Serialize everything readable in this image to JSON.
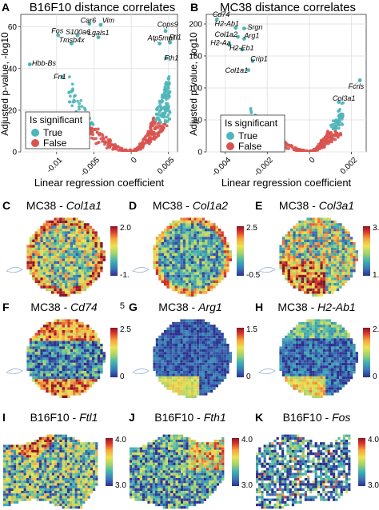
{
  "figure": {
    "volcano_panels": [
      {
        "letter": "A",
        "title": "B16F10 distance correlates",
        "xlabel": "Linear regression coefficient",
        "ylabel": "Adjusted p-value, -log10",
        "xticks": [
          "-0.01",
          "-0.005",
          "0",
          "0.005"
        ],
        "yticks": [
          "0",
          "20",
          "40",
          "60"
        ],
        "legend_title": "Is significant",
        "legend_true": "True",
        "legend_false": "False",
        "genes": [
          {
            "label": "Car6",
            "x": -0.0056,
            "y": 61.5,
            "lx": -0.0068,
            "ly": 62
          },
          {
            "label": "Vim",
            "x": -0.0041,
            "y": 61,
            "lx": -0.0039,
            "ly": 62
          },
          {
            "label": "Fos",
            "x": -0.0098,
            "y": 56,
            "lx": -0.0107,
            "ly": 57
          },
          {
            "label": "S100a6",
            "x": -0.0072,
            "y": 56,
            "lx": -0.0088,
            "ly": 56.5
          },
          {
            "label": "Lgals1",
            "x": -0.0044,
            "y": 55,
            "lx": -0.0058,
            "ly": 56
          },
          {
            "label": "Tmsb4x",
            "x": -0.008,
            "y": 52,
            "lx": -0.0097,
            "ly": 52.5
          },
          {
            "label": "Cops9",
            "x": 0.0046,
            "y": 58,
            "lx": 0.0035,
            "ly": 60
          },
          {
            "label": "Atp5mpl",
            "x": 0.0038,
            "y": 52,
            "lx": 0.0022,
            "ly": 53.5
          },
          {
            "label": "Ftl1",
            "x": 0.0052,
            "y": 52.5,
            "lx": 0.0051,
            "ly": 54
          },
          {
            "label": "Fth1",
            "x": 0.0047,
            "y": 45,
            "lx": 0.0044,
            "ly": 44
          },
          {
            "label": "Hbb-Bs",
            "x": -0.0136,
            "y": 42,
            "lx": -0.0133,
            "ly": 41.5
          },
          {
            "label": "Fn1",
            "x": -0.0092,
            "y": 36,
            "lx": -0.0104,
            "ly": 35
          }
        ]
      },
      {
        "letter": "B",
        "title": "MC38 distance correlates",
        "xlabel": "Linear regression coefficient",
        "ylabel": "Adjusted p-value, -log10",
        "xticks": [
          "-0.004",
          "-0.002",
          "0",
          "0.002"
        ],
        "yticks": [
          "0",
          "50",
          "100",
          "150",
          "200"
        ],
        "legend_title": "Is significant",
        "legend_true": "True",
        "legend_false": "False",
        "genes": [
          {
            "label": "Cd74",
            "x": -0.0044,
            "y": 207,
            "lx": -0.0046,
            "ly": 211
          },
          {
            "label": "H2-Ab1",
            "x": -0.0035,
            "y": 194,
            "lx": -0.0045,
            "ly": 197
          },
          {
            "label": "Srgn",
            "x": -0.0031,
            "y": 193,
            "lx": -0.00295,
            "ly": 191
          },
          {
            "label": "Col1a2",
            "x": -0.0034,
            "y": 180,
            "lx": -0.0045,
            "ly": 180
          },
          {
            "label": "Arg1",
            "x": -0.0031,
            "y": 177,
            "lx": -0.0031,
            "ly": 178
          },
          {
            "label": "H2-Aa",
            "x": -0.0038,
            "y": 167,
            "lx": -0.0047,
            "ly": 167
          },
          {
            "label": "H2-Eb1",
            "x": -0.0032,
            "y": 160,
            "lx": -0.0038,
            "ly": 159
          },
          {
            "label": "Crip1",
            "x": -0.0027,
            "y": 142,
            "lx": -0.0028,
            "ly": 142
          },
          {
            "label": "Col1a1",
            "x": -0.0029,
            "y": 128,
            "lx": -0.004,
            "ly": 124
          },
          {
            "label": "Fcrls",
            "x": 0.0024,
            "y": 112,
            "lx": 0.00185,
            "ly": 99
          },
          {
            "label": "Col3a1",
            "x": 0.0014,
            "y": 78,
            "lx": 0.0011,
            "ly": 80
          }
        ]
      }
    ],
    "spatial_panels": [
      {
        "letter": "C",
        "sample": "MC38",
        "gene": "Col1a1",
        "shape": "circle",
        "scale_top": "2.0",
        "scale_bottom": "-1.",
        "pattern": "col1a1"
      },
      {
        "letter": "D",
        "sample": "MC38",
        "gene": "Col1a2",
        "shape": "circle",
        "scale_top": "2.5",
        "scale_bottom": "-0.5",
        "pattern": "col1a2"
      },
      {
        "letter": "E",
        "sample": "MC38",
        "gene": "Col3a1",
        "shape": "circle",
        "scale_top": "3.00",
        "scale_bottom": "1.50",
        "pattern": "col3a1"
      },
      {
        "letter": "F",
        "sample": "MC38",
        "gene": "Cd74",
        "shape": "circle",
        "scale_top": "2.5",
        "scale_bottom": "0",
        "extra": "5",
        "pattern": "cd74"
      },
      {
        "letter": "G",
        "sample": "MC38",
        "gene": "Arg1",
        "shape": "circle",
        "scale_top": "1.5",
        "scale_bottom": "0",
        "pattern": "arg1"
      },
      {
        "letter": "H",
        "sample": "MC38",
        "gene": "H2-Ab1",
        "shape": "circle",
        "scale_top": "2.0",
        "scale_bottom": "0",
        "pattern": "h2ab1"
      },
      {
        "letter": "I",
        "sample": "B16F10",
        "gene": "Ftl1",
        "shape": "tissue",
        "scale_top": "4.0",
        "scale_bottom": "3.0",
        "pattern": "ftl1"
      },
      {
        "letter": "J",
        "sample": "B16F10",
        "gene": "Fth1",
        "shape": "tissue",
        "scale_top": "4.0",
        "scale_bottom": "3.0",
        "pattern": "fth1"
      },
      {
        "letter": "K",
        "sample": "B16F10",
        "gene": "Fos",
        "shape": "tissue",
        "scale_top": "4.0",
        "scale_bottom": "3.0",
        "pattern": "fos"
      }
    ]
  },
  "chart_data": [
    {
      "type": "scatter",
      "title": "B16F10 distance correlates",
      "xlabel": "Linear regression coefficient",
      "ylabel": "Adjusted p-value, -log10",
      "xlim": [
        -0.0148,
        0.0062
      ],
      "ylim": [
        0,
        66
      ],
      "grid": true,
      "legend_position": "bottom-left",
      "series": [
        {
          "name": "True",
          "color": "#4fb6b8",
          "points": [
            [
              -0.0136,
              42
            ],
            [
              -0.0098,
              56
            ],
            [
              -0.0092,
              36
            ],
            [
              -0.008,
              52
            ],
            [
              -0.0072,
              56
            ],
            [
              -0.0056,
              61.5
            ],
            [
              -0.0044,
              55
            ],
            [
              -0.0041,
              61
            ],
            [
              0.0038,
              52
            ],
            [
              0.0046,
              58
            ],
            [
              0.0047,
              45
            ],
            [
              0.0052,
              52.5
            ]
          ]
        },
        {
          "name": "False",
          "color": "#d9534f",
          "points": []
        }
      ],
      "shape": "volcano"
    },
    {
      "type": "scatter",
      "title": "MC38 distance correlates",
      "xlabel": "Linear regression coefficient",
      "ylabel": "Adjusted p-value, -log10",
      "xlim": [
        -0.0049,
        0.0027
      ],
      "ylim": [
        0,
        215
      ],
      "grid": true,
      "legend_position": "bottom-left",
      "series": [
        {
          "name": "True",
          "color": "#4fb6b8",
          "points": [
            [
              -0.0044,
              207
            ],
            [
              -0.0035,
              194
            ],
            [
              -0.0031,
              193
            ],
            [
              -0.0034,
              180
            ],
            [
              -0.0031,
              177
            ],
            [
              -0.0038,
              167
            ],
            [
              -0.0032,
              160
            ],
            [
              -0.0027,
              142
            ],
            [
              -0.0029,
              128
            ],
            [
              0.0024,
              112
            ],
            [
              0.0014,
              78
            ]
          ]
        },
        {
          "name": "False",
          "color": "#d9534f",
          "points": []
        }
      ],
      "shape": "volcano"
    },
    {
      "type": "heatmap",
      "title": "MC38 - Col1a1",
      "colorbar_range": [
        -1,
        2
      ]
    },
    {
      "type": "heatmap",
      "title": "MC38 - Col1a2",
      "colorbar_range": [
        -0.5,
        2.5
      ]
    },
    {
      "type": "heatmap",
      "title": "MC38 - Col3a1",
      "colorbar_range": [
        1.5,
        3
      ]
    },
    {
      "type": "heatmap",
      "title": "MC38 - Cd74",
      "colorbar_range": [
        0,
        2.5
      ]
    },
    {
      "type": "heatmap",
      "title": "MC38 - Arg1",
      "colorbar_range": [
        0,
        1.5
      ]
    },
    {
      "type": "heatmap",
      "title": "MC38 - H2-Ab1",
      "colorbar_range": [
        0,
        2
      ]
    },
    {
      "type": "heatmap",
      "title": "B16F10 - Ftl1",
      "colorbar_range": [
        3,
        4
      ]
    },
    {
      "type": "heatmap",
      "title": "B16F10 - Fth1",
      "colorbar_range": [
        3,
        4
      ]
    },
    {
      "type": "heatmap",
      "title": "B16F10 - Fos",
      "colorbar_range": [
        3,
        4
      ]
    }
  ],
  "colors": {
    "true": "#4fb6b8",
    "false": "#d9534f",
    "grid": "#e6e6e6",
    "colormap": [
      "#2c2f8f",
      "#3a78b8",
      "#3fb3b0",
      "#a3d36b",
      "#ede251",
      "#f6a23c",
      "#dd3b2c",
      "#8b1324"
    ]
  }
}
